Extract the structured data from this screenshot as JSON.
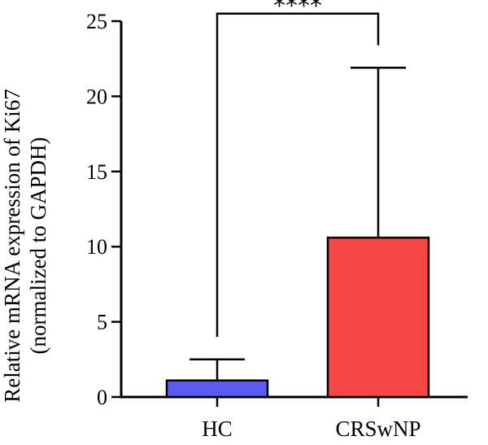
{
  "chart_data": {
    "type": "bar",
    "categories": [
      "HC",
      "CRSwNP"
    ],
    "values": [
      1.1,
      10.6
    ],
    "error_upper": [
      2.5,
      21.9
    ],
    "colors": [
      "#5b5bf2",
      "#f74646"
    ],
    "ylabel": [
      "Relative mRNA expression of Ki67",
      "(normalized to GAPDH)"
    ],
    "ylim": [
      0,
      25
    ],
    "yticks": [
      0,
      5,
      10,
      15,
      20,
      25
    ],
    "grid": false,
    "significance": {
      "label": "****",
      "from": "HC",
      "to": "CRSwNP",
      "left_start": 4.0,
      "right_start": 23.4,
      "top": 25.5
    }
  }
}
